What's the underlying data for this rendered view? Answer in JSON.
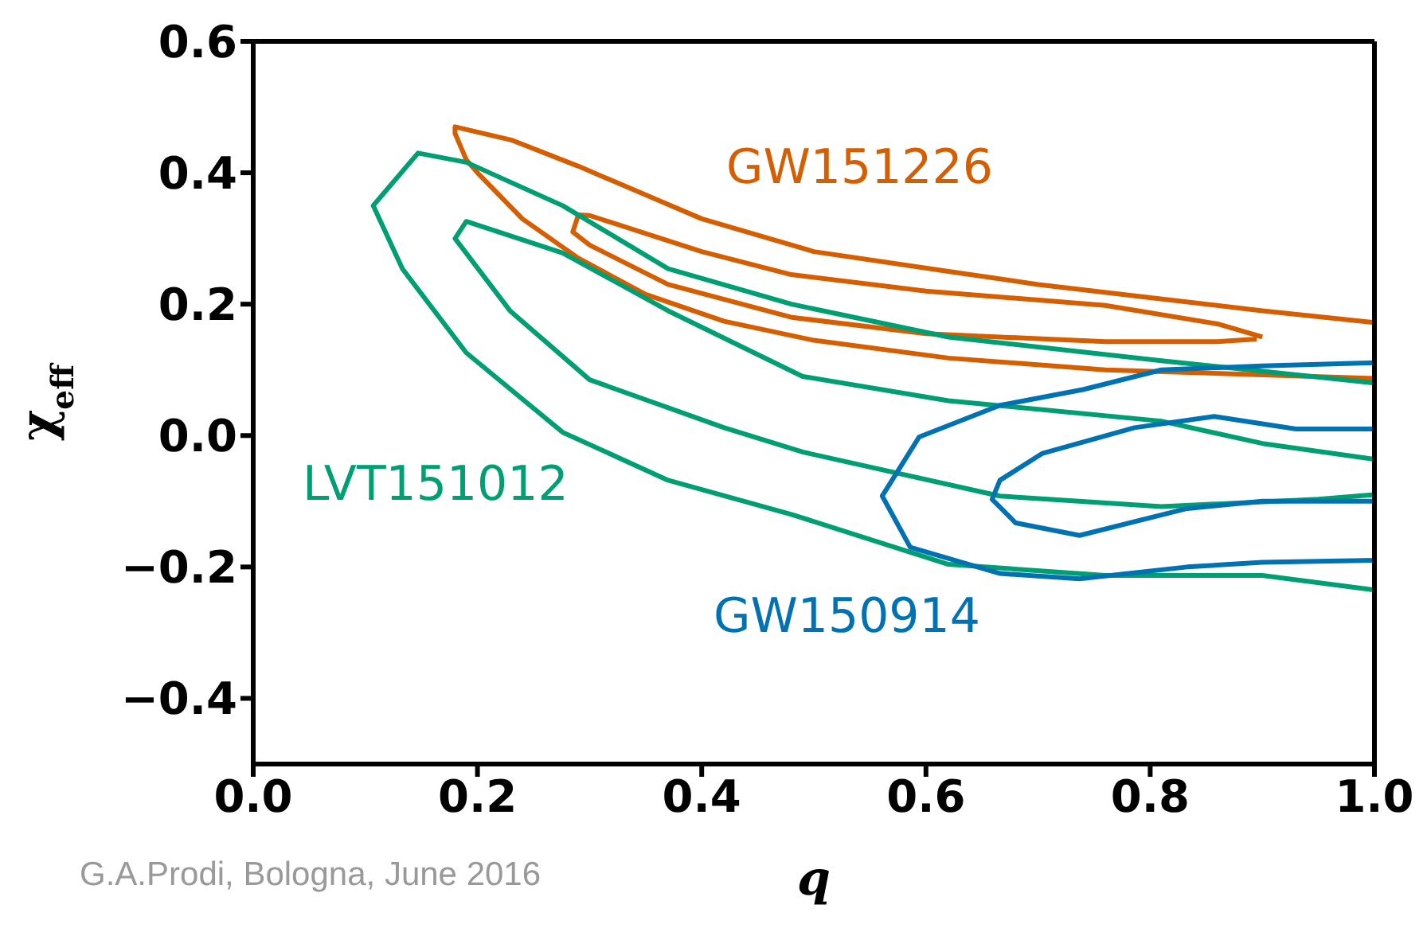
{
  "chart_data": {
    "type": "line",
    "xlabel": "q",
    "ylabel": "χ$_{eff}$",
    "xlim": [
      0,
      1
    ],
    "ylim": [
      -0.5,
      0.6
    ],
    "xticks": [
      {
        "value": 0,
        "label": "0.0"
      },
      {
        "value": 0.2,
        "label": "0.2"
      },
      {
        "value": 0.4,
        "label": "0.4"
      },
      {
        "value": 0.6,
        "label": "0.6"
      },
      {
        "value": 0.8,
        "label": "0.8"
      },
      {
        "value": 1,
        "label": "1.0"
      }
    ],
    "yticks": [
      {
        "value": -0.4,
        "label": "−0.4"
      },
      {
        "value": -0.2,
        "label": "−0.2"
      },
      {
        "value": 0,
        "label": "0.0"
      },
      {
        "value": 0.2,
        "label": "0.2"
      },
      {
        "value": 0.4,
        "label": "0.4"
      },
      {
        "value": 0.6,
        "label": "0.6"
      }
    ],
    "legend": false,
    "marker": "none",
    "line_style": "solid",
    "series": [
      {
        "name": "GW151226",
        "color": "#d55e00",
        "x": [
          1.0,
          0.9,
          0.8,
          0.7,
          0.62,
          0.5,
          0.4,
          0.29,
          0.23,
          0.18,
          0.18,
          0.19,
          0.2,
          0.24,
          0.29,
          0.35,
          0.42,
          0.5,
          0.62,
          0.76,
          1.0
        ],
        "values": [
          0.172,
          0.19,
          0.21,
          0.23,
          0.25,
          0.28,
          0.33,
          0.41,
          0.45,
          0.47,
          0.46,
          0.42,
          0.4,
          0.33,
          0.27,
          0.215,
          0.174,
          0.145,
          0.118,
          0.1,
          0.087
        ]
      },
      {
        "color": "#d55e00",
        "x": [
          0.9,
          0.86,
          0.76,
          0.6,
          0.48,
          0.4,
          0.3,
          0.29,
          0.285,
          0.3,
          0.37,
          0.48,
          0.6,
          0.76,
          0.86,
          0.895
        ],
        "values": [
          0.15,
          0.17,
          0.198,
          0.22,
          0.245,
          0.28,
          0.335,
          0.336,
          0.31,
          0.29,
          0.23,
          0.18,
          0.155,
          0.143,
          0.143,
          0.147
        ]
      },
      {
        "name": "LVT151012",
        "color": "#009e73",
        "x": [
          1.0,
          0.81,
          0.62,
          0.48,
          0.37,
          0.276,
          0.19,
          0.147,
          0.107,
          0.133,
          0.19,
          0.276,
          0.37,
          0.48,
          0.62,
          0.76,
          0.9,
          1.0
        ],
        "values": [
          0.08,
          0.114,
          0.15,
          0.2,
          0.254,
          0.35,
          0.416,
          0.43,
          0.35,
          0.254,
          0.126,
          0.005,
          -0.068,
          -0.12,
          -0.196,
          -0.213,
          -0.213,
          -0.235
        ]
      },
      {
        "color": "#009e73",
        "x": [
          1.0,
          0.9,
          0.81,
          0.62,
          0.49,
          0.37,
          0.276,
          0.19,
          0.18,
          0.229,
          0.3,
          0.42,
          0.49,
          0.666,
          0.81,
          0.95,
          1.0
        ],
        "values": [
          -0.036,
          -0.012,
          0.022,
          0.053,
          0.09,
          0.19,
          0.278,
          0.326,
          0.3,
          0.19,
          0.085,
          0.012,
          -0.025,
          -0.092,
          -0.108,
          -0.097,
          -0.09
        ]
      },
      {
        "name": "GW150914",
        "color": "#0072b2",
        "x": [
          1.0,
          0.9,
          0.81,
          0.74,
          0.666,
          0.594,
          0.561,
          0.586,
          0.666,
          0.737,
          0.833,
          0.9,
          1.0
        ],
        "values": [
          0.111,
          0.106,
          0.1,
          0.07,
          0.046,
          -0.002,
          -0.092,
          -0.17,
          -0.21,
          -0.218,
          -0.2,
          -0.193,
          -0.19
        ]
      },
      {
        "color": "#0072b2",
        "x": [
          1.0,
          0.93,
          0.857,
          0.786,
          0.704,
          0.666,
          0.659,
          0.68,
          0.737,
          0.833,
          0.9,
          1.0
        ],
        "values": [
          0.01,
          0.01,
          0.029,
          0.012,
          -0.027,
          -0.068,
          -0.097,
          -0.133,
          -0.152,
          -0.111,
          -0.1,
          -0.1
        ]
      }
    ],
    "annotations": [
      "G.A.Prodi, Bologna, June 2016"
    ]
  }
}
